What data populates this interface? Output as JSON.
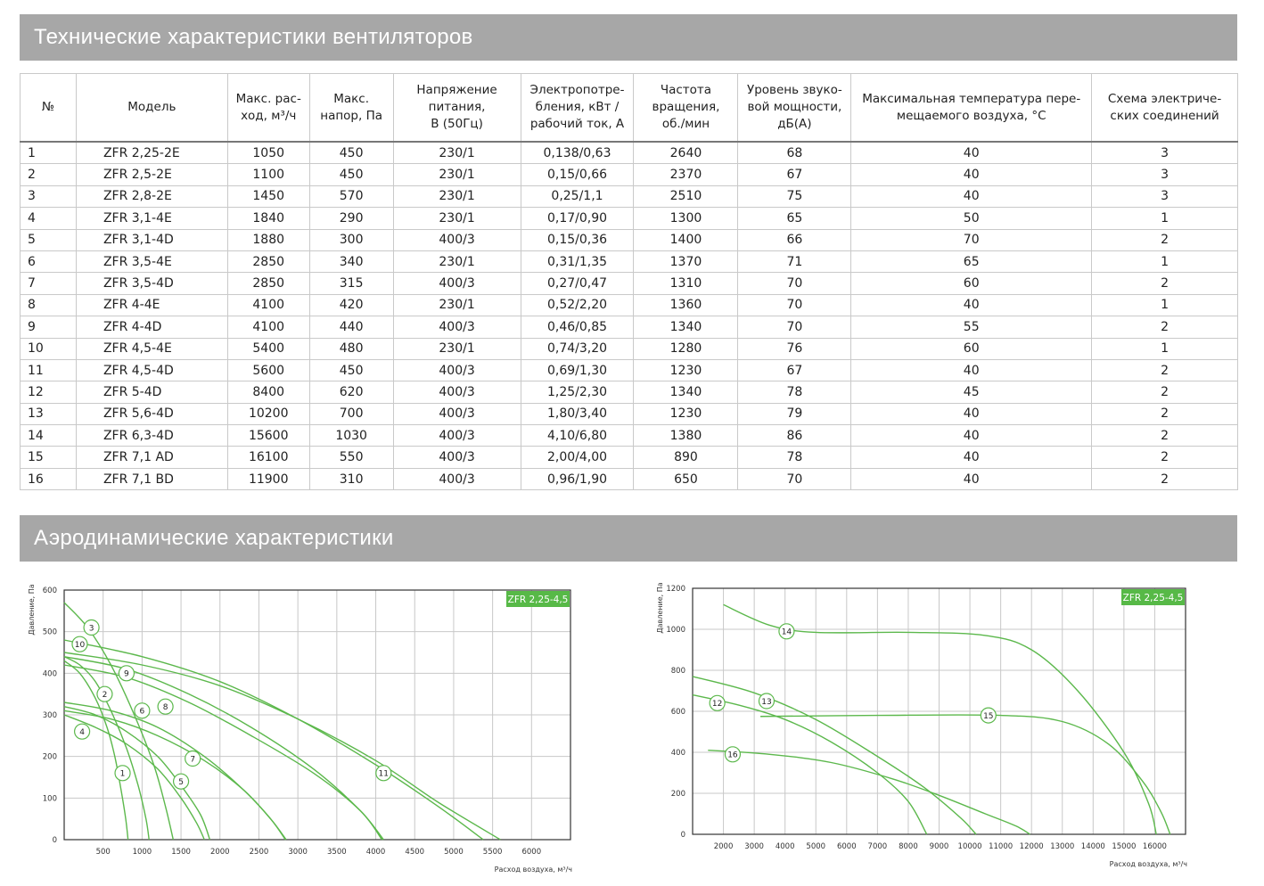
{
  "sections": {
    "specs_title": "Технические характеристики вентиляторов",
    "aero_title": "Аэродинамические характеристики"
  },
  "table": {
    "headers": [
      "№",
      "Модель",
      "Макс. рас-ход, м³/ч",
      "Макс. напор, Па",
      "Напряжение питания, В (50Гц)",
      "Электропотре-бления, кВт / рабочий ток, А",
      "Частота вращения, об./мин",
      "Уровень звуко-вой мощности, дБ(А)",
      "Максимальная температура пере-мещаемого воздуха, °С",
      "Схема электриче-ских соединений"
    ],
    "header_lines": [
      [
        "№"
      ],
      [
        "Модель"
      ],
      [
        "Макс. рас-",
        "ход, м³/ч"
      ],
      [
        "Макс.",
        "напор, Па"
      ],
      [
        "Напряжение",
        "питания,",
        "В (50Гц)"
      ],
      [
        "Электропотре-",
        "бления, кВт /",
        "рабочий ток, А"
      ],
      [
        "Частота",
        "вращения,",
        "об./мин"
      ],
      [
        "Уровень звуко-",
        "вой мощности,",
        "дБ(А)"
      ],
      [
        "Максимальная температура пере-",
        "мещаемого воздуха, °С"
      ],
      [
        "Схема электриче-",
        "ских соединений"
      ]
    ],
    "rows": [
      [
        "1",
        "ZFR 2,25-2E",
        "1050",
        "450",
        "230/1",
        "0,138/0,63",
        "2640",
        "68",
        "40",
        "3"
      ],
      [
        "2",
        "ZFR 2,5-2E",
        "1100",
        "450",
        "230/1",
        "0,15/0,66",
        "2370",
        "67",
        "40",
        "3"
      ],
      [
        "3",
        "ZFR 2,8-2E",
        "1450",
        "570",
        "230/1",
        "0,25/1,1",
        "2510",
        "75",
        "40",
        "3"
      ],
      [
        "4",
        "ZFR 3,1-4E",
        "1840",
        "290",
        "230/1",
        "0,17/0,90",
        "1300",
        "65",
        "50",
        "1"
      ],
      [
        "5",
        "ZFR 3,1-4D",
        "1880",
        "300",
        "400/3",
        "0,15/0,36",
        "1400",
        "66",
        "70",
        "2"
      ],
      [
        "6",
        "ZFR 3,5-4E",
        "2850",
        "340",
        "230/1",
        "0,31/1,35",
        "1370",
        "71",
        "65",
        "1"
      ],
      [
        "7",
        "ZFR 3,5-4D",
        "2850",
        "315",
        "400/3",
        "0,27/0,47",
        "1310",
        "70",
        "60",
        "2"
      ],
      [
        "8",
        "ZFR 4-4E",
        "4100",
        "420",
        "230/1",
        "0,52/2,20",
        "1360",
        "70",
        "40",
        "1"
      ],
      [
        "9",
        "ZFR 4-4D",
        "4100",
        "440",
        "400/3",
        "0,46/0,85",
        "1340",
        "70",
        "55",
        "2"
      ],
      [
        "10",
        "ZFR 4,5-4E",
        "5400",
        "480",
        "230/1",
        "0,74/3,20",
        "1280",
        "76",
        "60",
        "1"
      ],
      [
        "11",
        "ZFR 4,5-4D",
        "5600",
        "450",
        "400/3",
        "0,69/1,30",
        "1230",
        "67",
        "40",
        "2"
      ],
      [
        "12",
        "ZFR 5-4D",
        "8400",
        "620",
        "400/3",
        "1,25/2,30",
        "1340",
        "78",
        "45",
        "2"
      ],
      [
        "13",
        "ZFR 5,6-4D",
        "10200",
        "700",
        "400/3",
        "1,80/3,40",
        "1230",
        "79",
        "40",
        "2"
      ],
      [
        "14",
        "ZFR 6,3-4D",
        "15600",
        "1030",
        "400/3",
        "4,10/6,80",
        "1380",
        "86",
        "40",
        "2"
      ],
      [
        "15",
        "ZFR 7,1 AD",
        "16100",
        "550",
        "400/3",
        "2,00/4,00",
        "890",
        "78",
        "40",
        "2"
      ],
      [
        "16",
        "ZFR 7,1 BD",
        "11900",
        "310",
        "400/3",
        "0,96/1,90",
        "650",
        "70",
        "40",
        "2"
      ]
    ]
  },
  "chart_data": [
    {
      "type": "line",
      "title": "ZFR 2,25-4,5",
      "ylabel": "Давление, Па",
      "xlabel": "Расход воздуха, м³/ч",
      "xlim": [
        0,
        6500
      ],
      "ylim": [
        0,
        600
      ],
      "xticks": [
        500,
        1000,
        1500,
        2000,
        2500,
        3000,
        3500,
        4000,
        4500,
        5000,
        5500,
        6000
      ],
      "yticks": [
        0,
        100,
        200,
        300,
        400,
        500,
        600
      ],
      "grid": true,
      "curve_color": "#5cb84c",
      "series": [
        {
          "name": "1",
          "label_at": [
            750,
            160
          ],
          "points": [
            [
              0,
              430
            ],
            [
              200,
              400
            ],
            [
              400,
              340
            ],
            [
              550,
              270
            ],
            [
              650,
              200
            ],
            [
              730,
              120
            ],
            [
              790,
              50
            ],
            [
              820,
              0
            ]
          ]
        },
        {
          "name": "2",
          "label_at": [
            520,
            350
          ],
          "points": [
            [
              0,
              440
            ],
            [
              200,
              420
            ],
            [
              400,
              380
            ],
            [
              600,
              310
            ],
            [
              800,
              220
            ],
            [
              950,
              130
            ],
            [
              1050,
              50
            ],
            [
              1090,
              0
            ]
          ]
        },
        {
          "name": "3",
          "label_at": [
            350,
            510
          ],
          "points": [
            [
              0,
              570
            ],
            [
              300,
              510
            ],
            [
              600,
              420
            ],
            [
              900,
              300
            ],
            [
              1150,
              180
            ],
            [
              1300,
              80
            ],
            [
              1400,
              0
            ]
          ]
        },
        {
          "name": "4",
          "label_at": [
            230,
            260
          ],
          "points": [
            [
              0,
              300
            ],
            [
              400,
              270
            ],
            [
              800,
              230
            ],
            [
              1200,
              170
            ],
            [
              1500,
              100
            ],
            [
              1700,
              40
            ],
            [
              1800,
              0
            ]
          ]
        },
        {
          "name": "5",
          "label_at": [
            1500,
            140
          ],
          "points": [
            [
              0,
              320
            ],
            [
              400,
              300
            ],
            [
              800,
              260
            ],
            [
              1200,
              200
            ],
            [
              1500,
              130
            ],
            [
              1750,
              60
            ],
            [
              1870,
              0
            ]
          ]
        },
        {
          "name": "6",
          "label_at": [
            1000,
            310
          ],
          "points": [
            [
              0,
              330
            ],
            [
              600,
              310
            ],
            [
              1200,
              270
            ],
            [
              1800,
              200
            ],
            [
              2300,
              120
            ],
            [
              2650,
              50
            ],
            [
              2840,
              0
            ]
          ]
        },
        {
          "name": "7",
          "label_at": [
            1650,
            195
          ],
          "points": [
            [
              0,
              310
            ],
            [
              600,
              290
            ],
            [
              1200,
              250
            ],
            [
              1800,
              190
            ],
            [
              2300,
              120
            ],
            [
              2650,
              50
            ],
            [
              2850,
              0
            ]
          ]
        },
        {
          "name": "8",
          "label_at": [
            1300,
            320
          ],
          "points": [
            [
              0,
              420
            ],
            [
              800,
              390
            ],
            [
              1600,
              330
            ],
            [
              2400,
              250
            ],
            [
              3200,
              160
            ],
            [
              3800,
              70
            ],
            [
              4080,
              0
            ]
          ]
        },
        {
          "name": "9",
          "label_at": [
            800,
            400
          ],
          "points": [
            [
              0,
              440
            ],
            [
              800,
              410
            ],
            [
              1600,
              350
            ],
            [
              2400,
              270
            ],
            [
              3200,
              170
            ],
            [
              3800,
              70
            ],
            [
              4100,
              0
            ]
          ]
        },
        {
          "name": "10",
          "label_at": [
            200,
            470
          ],
          "points": [
            [
              0,
              480
            ],
            [
              1000,
              440
            ],
            [
              2000,
              380
            ],
            [
              3000,
              290
            ],
            [
              4000,
              180
            ],
            [
              4800,
              80
            ],
            [
              5380,
              0
            ]
          ]
        },
        {
          "name": "11",
          "label_at": [
            4100,
            160
          ],
          "points": [
            [
              0,
              450
            ],
            [
              1000,
              420
            ],
            [
              2000,
              370
            ],
            [
              3000,
              290
            ],
            [
              4000,
              190
            ],
            [
              4800,
              90
            ],
            [
              5600,
              0
            ]
          ]
        }
      ]
    },
    {
      "type": "line",
      "title": "ZFR 2,25-4,5",
      "ylabel": "Давление, Па",
      "xlabel": "Расход воздуха, м³/ч",
      "xlim": [
        1000,
        17000
      ],
      "ylim": [
        0,
        1200
      ],
      "xticks": [
        2000,
        3000,
        4000,
        5000,
        6000,
        7000,
        8000,
        9000,
        10000,
        11000,
        12000,
        13000,
        14000,
        15000,
        16000
      ],
      "yticks": [
        0,
        200,
        400,
        600,
        800,
        1000,
        1200
      ],
      "grid": true,
      "curve_color": "#5cb84c",
      "series": [
        {
          "name": "12",
          "label_at": [
            1800,
            640
          ],
          "points": [
            [
              1000,
              680
            ],
            [
              2500,
              630
            ],
            [
              4000,
              560
            ],
            [
              5500,
              450
            ],
            [
              7000,
              300
            ],
            [
              8000,
              160
            ],
            [
              8600,
              0
            ]
          ]
        },
        {
          "name": "13",
          "label_at": [
            3400,
            650
          ],
          "points": [
            [
              1000,
              770
            ],
            [
              3000,
              690
            ],
            [
              5000,
              560
            ],
            [
              7000,
              380
            ],
            [
              8500,
              230
            ],
            [
              9700,
              80
            ],
            [
              10200,
              0
            ]
          ]
        },
        {
          "name": "14",
          "label_at": [
            4050,
            990
          ],
          "points": [
            [
              2000,
              1120
            ],
            [
              3500,
              1020
            ],
            [
              5000,
              985
            ],
            [
              8000,
              985
            ],
            [
              10500,
              970
            ],
            [
              12000,
              900
            ],
            [
              13500,
              700
            ],
            [
              15000,
              400
            ],
            [
              15800,
              150
            ],
            [
              16050,
              0
            ]
          ]
        },
        {
          "name": "15",
          "label_at": [
            10600,
            580
          ],
          "points": [
            [
              3200,
              575
            ],
            [
              7000,
              580
            ],
            [
              11000,
              580
            ],
            [
              13000,
              550
            ],
            [
              14500,
              440
            ],
            [
              15600,
              260
            ],
            [
              16200,
              110
            ],
            [
              16500,
              0
            ]
          ]
        },
        {
          "name": "16",
          "label_at": [
            2300,
            390
          ],
          "points": [
            [
              1500,
              410
            ],
            [
              3500,
              390
            ],
            [
              5500,
              350
            ],
            [
              7500,
              270
            ],
            [
              9000,
              190
            ],
            [
              10500,
              100
            ],
            [
              11500,
              40
            ],
            [
              11950,
              0
            ]
          ]
        }
      ]
    }
  ]
}
